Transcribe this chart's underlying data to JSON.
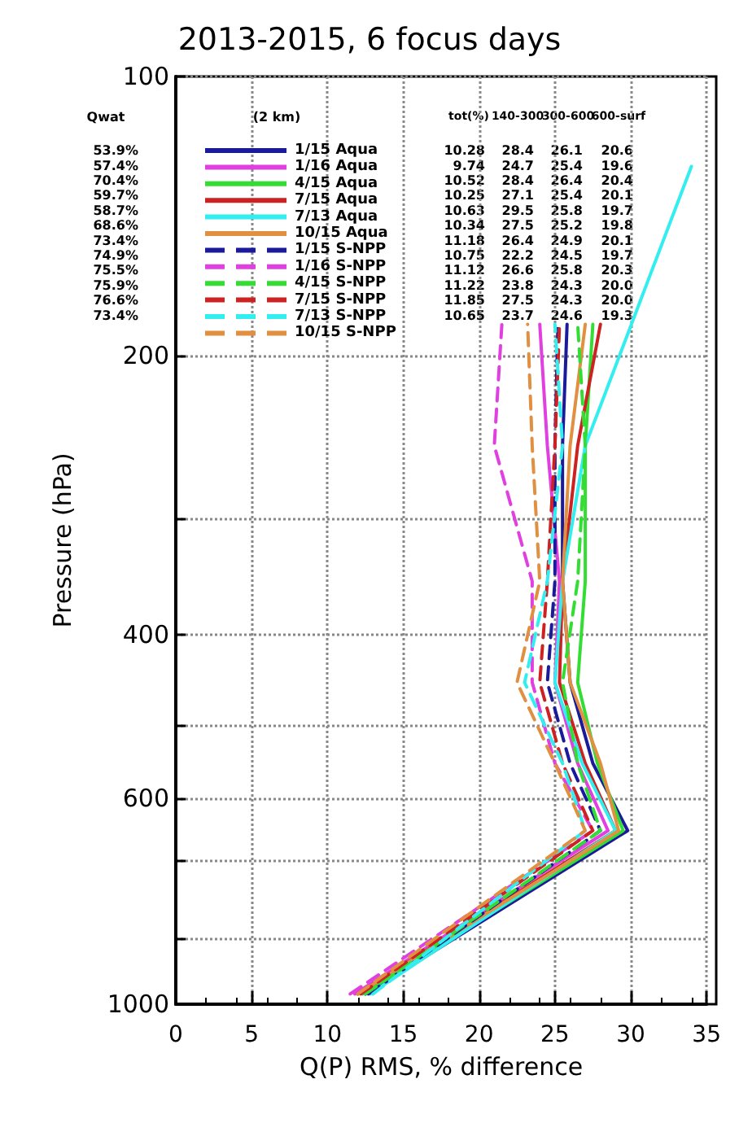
{
  "chart_data": {
    "type": "line",
    "title": "2013-2015, 6 focus days",
    "xlabel": "Q(P) RMS, % difference",
    "ylabel": "Pressure (hPa)",
    "xlim": [
      0,
      35
    ],
    "xticks": [
      0,
      5,
      10,
      15,
      20,
      25,
      30,
      35
    ],
    "ylim": [
      1000,
      100
    ],
    "yticks": [
      100,
      200,
      {
        "value": 300,
        "label": null
      },
      400,
      {
        "value": 500,
        "label": null
      },
      600,
      {
        "value": 700,
        "label": null
      },
      {
        "value": 850,
        "label": null
      },
      1000
    ],
    "log": "y",
    "grid": true,
    "legend": "top left",
    "marker": "none",
    "annotations": [
      "Qwat",
      "(2 km)",
      "tot(%)",
      "140-300",
      "300-600",
      "600-surf",
      "53.9% 10.28 28.4 26.1 20.6",
      "57.4% 9.74 24.7 25.4 19.6",
      "70.4% 10.52 28.4 26.4 20.4",
      "59.7% 10.25 27.1 25.4 20.1",
      "58.7% 10.63 29.5 25.8 19.7",
      "68.6% 10.34 27.5 25.2 19.8",
      "73.4% 11.18 26.4 24.9 20.1",
      "74.9% 10.75 22.2 24.5 19.7",
      "75.5% 11.12 26.6 25.8 20.3",
      "75.9% 11.22 23.8 24.3 20.0",
      "76.6% 11.85 27.5 24.3 20.0",
      "73.4% 10.65 23.7 24.6 19.3"
    ],
    "series": [
      {
        "name": "1/15 Aqua",
        "color": "#1a1a9a",
        "line_style": "solid",
        "x": [
          12.5,
          29.8,
          27.5,
          26.0,
          25.5,
          25.5,
          25.8
        ],
        "values": [
          975,
          650,
          550,
          450,
          350,
          250,
          185
        ]
      },
      {
        "name": "1/16 Aqua",
        "color": "#e040e0",
        "line_style": "solid",
        "x": [
          11.8,
          28.5,
          26.5,
          25.0,
          25.3,
          24.5,
          24.0
        ],
        "values": [
          975,
          650,
          550,
          450,
          350,
          250,
          185
        ]
      },
      {
        "name": "4/15 Aqua",
        "color": "#33dd33",
        "line_style": "solid",
        "x": [
          12.3,
          29.5,
          27.8,
          26.5,
          27.0,
          27.0,
          27.5
        ],
        "values": [
          975,
          650,
          550,
          450,
          350,
          250,
          185
        ]
      },
      {
        "name": "7/15 Aqua",
        "color": "#cc2222",
        "line_style": "solid",
        "x": [
          12.0,
          29.0,
          27.0,
          25.3,
          25.5,
          26.5,
          28.0
        ],
        "values": [
          975,
          650,
          550,
          450,
          350,
          250,
          185
        ]
      },
      {
        "name": "7/13 Aqua",
        "color": "#33eeee",
        "line_style": "solid",
        "x": [
          12.8,
          29.0,
          26.8,
          25.0,
          25.5,
          27.0,
          34.0
        ],
        "values": [
          975,
          650,
          550,
          450,
          350,
          250,
          125
        ]
      },
      {
        "name": "10/15 Aqua",
        "color": "#e09040",
        "line_style": "solid",
        "x": [
          12.0,
          29.2,
          28.0,
          26.0,
          25.5,
          26.0,
          27.0
        ],
        "values": [
          975,
          650,
          550,
          450,
          350,
          250,
          185
        ]
      },
      {
        "name": "1/15 S-NPP",
        "color": "#1a1a9a",
        "line_style": "dashed",
        "x": [
          12.7,
          28.0,
          26.0,
          24.5,
          25.0,
          25.0,
          25.2
        ],
        "values": [
          975,
          650,
          550,
          450,
          350,
          250,
          185
        ]
      },
      {
        "name": "1/16 S-NPP",
        "color": "#e040e0",
        "line_style": "dashed",
        "x": [
          11.5,
          27.5,
          25.0,
          23.5,
          23.5,
          21.0,
          21.5
        ],
        "values": [
          975,
          650,
          550,
          450,
          350,
          250,
          185
        ]
      },
      {
        "name": "4/15 S-NPP",
        "color": "#33dd33",
        "line_style": "dashed",
        "x": [
          12.5,
          28.0,
          26.5,
          25.5,
          26.5,
          27.0,
          26.5
        ],
        "values": [
          975,
          650,
          550,
          450,
          350,
          250,
          185
        ]
      },
      {
        "name": "7/15 S-NPP",
        "color": "#cc2222",
        "line_style": "dashed",
        "x": [
          12.2,
          27.5,
          25.5,
          24.0,
          24.5,
          25.0,
          25.3
        ],
        "values": [
          975,
          650,
          550,
          450,
          350,
          250,
          185
        ]
      },
      {
        "name": "7/13 S-NPP",
        "color": "#33eeee",
        "line_style": "dashed",
        "x": [
          13.0,
          27.0,
          25.5,
          23.0,
          24.5,
          25.5,
          25.0
        ],
        "values": [
          975,
          650,
          550,
          450,
          350,
          250,
          185
        ]
      },
      {
        "name": "10/15 S-NPP",
        "color": "#e09040",
        "line_style": "dashed",
        "x": [
          12.0,
          27.0,
          25.0,
          22.5,
          24.0,
          23.5,
          23.2
        ],
        "values": [
          975,
          650,
          550,
          450,
          350,
          250,
          185
        ]
      }
    ]
  }
}
